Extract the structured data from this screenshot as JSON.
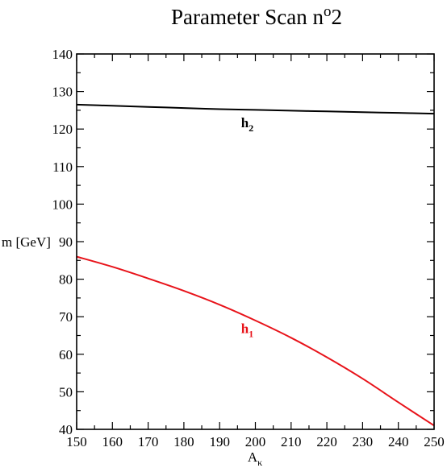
{
  "chart_data": {
    "type": "line",
    "title": {
      "main": "Parameter Scan n",
      "sup": "o",
      "tail": "2"
    },
    "xlabel": {
      "main": "A",
      "sub": "κ"
    },
    "ylabel": "m [GeV]",
    "xlim": [
      150,
      250
    ],
    "ylim": [
      40,
      140
    ],
    "xticks": [
      150,
      160,
      170,
      180,
      190,
      200,
      210,
      220,
      230,
      240,
      250
    ],
    "yticks": [
      40,
      50,
      60,
      70,
      80,
      90,
      100,
      110,
      120,
      130,
      140
    ],
    "xticks_minor_step": 5,
    "yticks_minor_step": 5,
    "grid": false,
    "series": [
      {
        "name": "h2",
        "color": "#000000",
        "x": [
          150,
          160,
          170,
          180,
          190,
          200,
          210,
          220,
          230,
          240,
          250
        ],
        "y": [
          126.5,
          126.2,
          125.9,
          125.6,
          125.3,
          125.1,
          124.9,
          124.7,
          124.5,
          124.3,
          124.1
        ]
      },
      {
        "name": "h1",
        "color": "#e8131a",
        "x": [
          150,
          160,
          170,
          180,
          190,
          200,
          210,
          220,
          230,
          240,
          250
        ],
        "y": [
          86.0,
          83.3,
          80.2,
          76.9,
          73.2,
          69.0,
          64.4,
          59.2,
          53.5,
          47.2,
          41.0
        ]
      }
    ],
    "annotations": [
      {
        "label": "h",
        "sub": "2",
        "color": "#000000",
        "x": 196,
        "y": 120.5
      },
      {
        "label": "h",
        "sub": "1",
        "color": "#e8131a",
        "x": 196,
        "y": 65.6
      }
    ]
  }
}
